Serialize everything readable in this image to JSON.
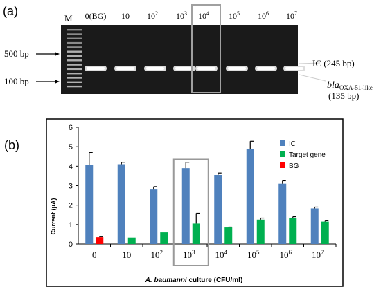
{
  "panel_a": {
    "label": "(a)",
    "marker_label": "M",
    "lane_labels": [
      {
        "base": "0(BG)",
        "sup": ""
      },
      {
        "base": "10",
        "sup": ""
      },
      {
        "base": "10",
        "sup": "2"
      },
      {
        "base": "10",
        "sup": "3"
      },
      {
        "base": "10",
        "sup": "4"
      },
      {
        "base": "10",
        "sup": "5"
      },
      {
        "base": "10",
        "sup": "6"
      },
      {
        "base": "10",
        "sup": "7"
      }
    ],
    "bp_500": "500 bp",
    "bp_100": "100 bp",
    "ic_label": "IC (245 bp)",
    "target_label_main": "bla",
    "target_label_sub": "OXA-51-like",
    "target_label_bp": "(135 bp)",
    "highlighted_lane": 4
  },
  "panel_b": {
    "label": "(b)"
  },
  "chart_data": {
    "type": "bar",
    "ylabel": "Current (μA)",
    "xlabel_italic": "A. baumanni",
    "xlabel_rest": " culture (CFU/ml)",
    "ylim": [
      0,
      6
    ],
    "yticks": [
      "0",
      "1",
      "2",
      "3",
      "4",
      "5",
      "6"
    ],
    "categories": [
      {
        "base": "0",
        "sup": ""
      },
      {
        "base": "10",
        "sup": ""
      },
      {
        "base": "10",
        "sup": "2"
      },
      {
        "base": "10",
        "sup": "3"
      },
      {
        "base": "10",
        "sup": "4"
      },
      {
        "base": "10",
        "sup": "5"
      },
      {
        "base": "10",
        "sup": "6"
      },
      {
        "base": "10",
        "sup": "7"
      }
    ],
    "series": [
      {
        "name": "IC",
        "color": "#4f81bd",
        "values": [
          4.05,
          null,
          2.8,
          3.9,
          3.55,
          4.9,
          3.1,
          1.83
        ],
        "values_full": [
          4.05,
          4.1,
          2.8,
          3.9,
          3.55,
          4.9,
          3.1,
          1.83
        ],
        "errors": [
          0.65,
          0.1,
          0.15,
          0.3,
          0.1,
          0.38,
          0.15,
          0.07
        ]
      },
      {
        "name": "Target gene",
        "color": "#00b050",
        "values": [
          null,
          0.33,
          0.6,
          1.05,
          0.85,
          1.25,
          1.35,
          1.15
        ],
        "errors": [
          0,
          0,
          0,
          0.53,
          0.02,
          0.08,
          0.05,
          0.07
        ]
      },
      {
        "name": "BG",
        "color": "#ff0000",
        "values": [
          0.35,
          null,
          null,
          null,
          null,
          null,
          null,
          null
        ],
        "errors": [
          0.03,
          0,
          0,
          0,
          0,
          0,
          0,
          0
        ]
      }
    ],
    "legend_position": "top-right",
    "highlighted_category": 3
  }
}
